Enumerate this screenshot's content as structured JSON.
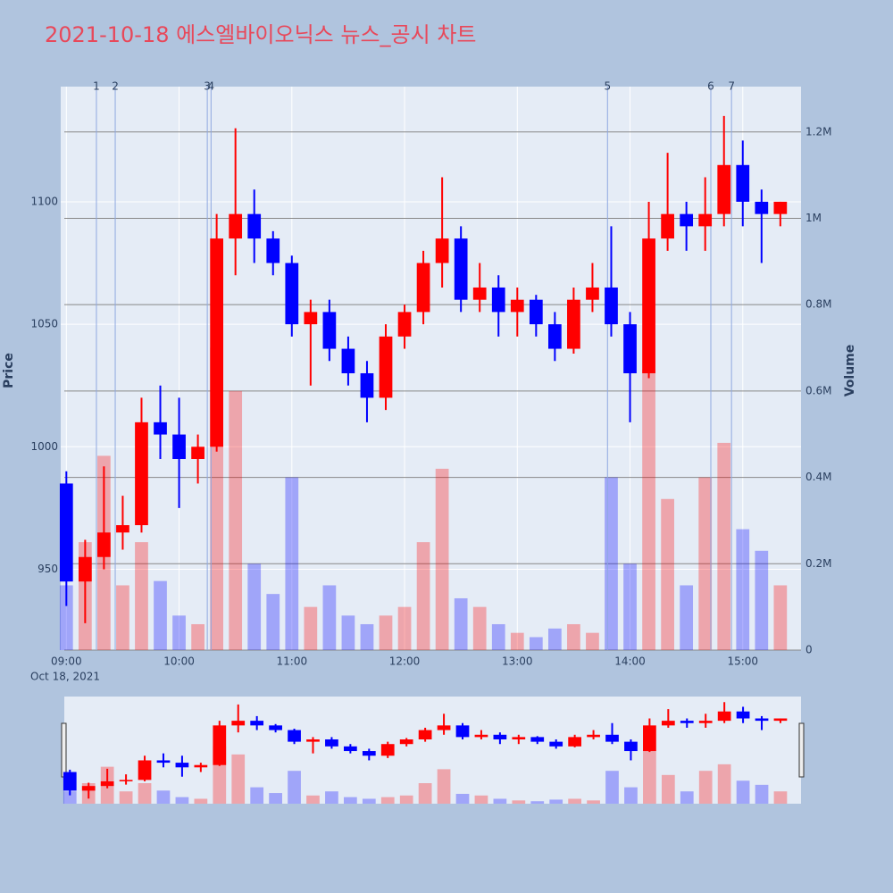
{
  "chart_data": {
    "type": "candlestick",
    "title": "2021-10-18 에스엘바이오닉스 뉴스_공시 차트",
    "y_label": "Price",
    "y2_label": "Volume",
    "x": [
      "09:00",
      "09:10",
      "09:20",
      "09:30",
      "09:40",
      "09:50",
      "10:00",
      "10:10",
      "10:20",
      "10:30",
      "10:40",
      "10:50",
      "11:00",
      "11:10",
      "11:20",
      "11:30",
      "11:40",
      "11:50",
      "12:00",
      "12:10",
      "12:20",
      "12:30",
      "12:40",
      "12:50",
      "13:00",
      "13:10",
      "13:20",
      "13:30",
      "13:40",
      "13:50",
      "14:00",
      "14:10",
      "14:20",
      "14:30",
      "14:40",
      "14:50",
      "15:00",
      "15:10",
      "15:20"
    ],
    "open": [
      985,
      945,
      955,
      965,
      968,
      1010,
      1005,
      995,
      1000,
      1085,
      1095,
      1085,
      1075,
      1050,
      1055,
      1040,
      1030,
      1020,
      1045,
      1055,
      1075,
      1085,
      1060,
      1065,
      1055,
      1060,
      1050,
      1040,
      1060,
      1065,
      1050,
      1030,
      1085,
      1095,
      1090,
      1095,
      1115,
      1100,
      1095
    ],
    "high": [
      990,
      962,
      992,
      980,
      1020,
      1025,
      1020,
      1005,
      1095,
      1130,
      1105,
      1088,
      1078,
      1060,
      1060,
      1045,
      1035,
      1050,
      1058,
      1080,
      1110,
      1090,
      1075,
      1070,
      1065,
      1062,
      1055,
      1065,
      1075,
      1090,
      1055,
      1100,
      1120,
      1100,
      1110,
      1135,
      1125,
      1105,
      1100
    ],
    "low": [
      935,
      928,
      950,
      958,
      965,
      995,
      975,
      985,
      998,
      1070,
      1075,
      1070,
      1045,
      1025,
      1035,
      1025,
      1010,
      1015,
      1040,
      1050,
      1065,
      1055,
      1055,
      1045,
      1045,
      1045,
      1035,
      1038,
      1055,
      1045,
      1010,
      1028,
      1080,
      1080,
      1080,
      1090,
      1090,
      1075,
      1090
    ],
    "close": [
      945,
      955,
      965,
      968,
      1010,
      1005,
      995,
      1000,
      1085,
      1095,
      1085,
      1075,
      1050,
      1055,
      1040,
      1030,
      1020,
      1045,
      1055,
      1075,
      1085,
      1060,
      1065,
      1055,
      1060,
      1050,
      1040,
      1060,
      1065,
      1050,
      1030,
      1085,
      1095,
      1090,
      1095,
      1115,
      1100,
      1095,
      1100
    ],
    "volume": [
      150000,
      250000,
      450000,
      150000,
      250000,
      160000,
      80000,
      60000,
      700000,
      600000,
      200000,
      130000,
      400000,
      100000,
      150000,
      80000,
      60000,
      80000,
      100000,
      250000,
      420000,
      120000,
      100000,
      60000,
      40000,
      30000,
      50000,
      60000,
      40000,
      400000,
      200000,
      650000,
      350000,
      150000,
      400000,
      480000,
      280000,
      230000,
      150000
    ],
    "up_color": "#ff0000",
    "down_color": "#0000ff",
    "xlim": [
      "08:57",
      "15:31"
    ],
    "xticks": [
      "09:00",
      "10:00",
      "11:00",
      "12:00",
      "13:00",
      "14:00",
      "15:00"
    ],
    "x_date_label": "Oct 18, 2021",
    "ylim": [
      917,
      1147
    ],
    "yticks": [
      950,
      1000,
      1050,
      1100
    ],
    "y2lim": [
      0,
      1305000
    ],
    "y2ticks": [
      0,
      {
        "value": 200000,
        "label": "0.2M"
      },
      {
        "value": 400000,
        "label": "0.4M"
      },
      {
        "value": 600000,
        "label": "0.6M"
      },
      {
        "value": 800000,
        "label": "0.8M"
      },
      {
        "value": 1000000,
        "label": "1M"
      },
      {
        "value": 1200000,
        "label": "1.2M"
      }
    ],
    "annotations": [
      {
        "x": "09:16",
        "text": "1"
      },
      {
        "x": "09:26",
        "text": "2"
      },
      {
        "x": "10:15",
        "text": "3"
      },
      {
        "x": "10:17",
        "text": "4"
      },
      {
        "x": "13:48",
        "text": "5"
      },
      {
        "x": "14:43",
        "text": "6"
      },
      {
        "x": "14:54",
        "text": "7"
      }
    ],
    "grid": true,
    "range_slider": true
  }
}
